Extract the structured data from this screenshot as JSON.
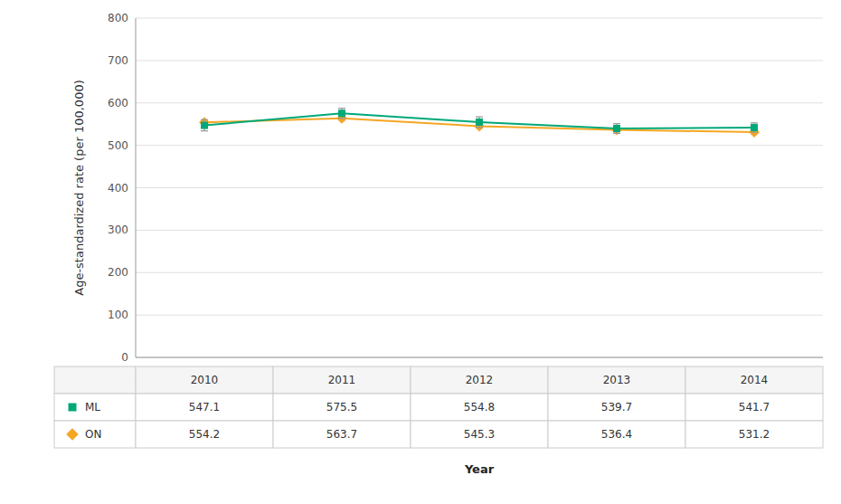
{
  "chart_data": {
    "type": "line",
    "x": [
      2010,
      2011,
      2012,
      2013,
      2014
    ],
    "xlim": [
      2009.5,
      2014.5
    ],
    "xticks": [
      2010,
      2011,
      2012,
      2013,
      2014
    ],
    "xlabel": "Year",
    "ylabel": "Age-standardized rate (per 100,000)",
    "ylim": [
      0,
      800
    ],
    "yticks": [
      0,
      100,
      200,
      300,
      400,
      500,
      600,
      700,
      800
    ],
    "grid": true,
    "data_labels": true,
    "series": [
      {
        "name": "ML",
        "color": "#00A878",
        "marker": "square",
        "values": [
          547.1,
          575.5,
          554.8,
          539.7,
          541.7
        ],
        "errors": [
          13.0,
          12.0,
          12.5,
          11.5,
          11.0
        ]
      },
      {
        "name": "ON",
        "color": "#F5A623",
        "marker": "diamond",
        "values": [
          554.2,
          563.7,
          545.3,
          536.4,
          531.2
        ],
        "errors": [
          4.0,
          3.8,
          3.8,
          3.7,
          3.7
        ]
      }
    ]
  }
}
